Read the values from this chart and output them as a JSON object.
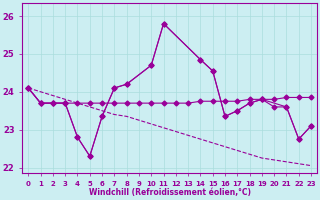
{
  "xlabel": "Windchill (Refroidissement éolien,°C)",
  "background_color": "#cceef2",
  "grid_color": "#aadddd",
  "line_color": "#990099",
  "xlim": [
    -0.5,
    23.5
  ],
  "ylim": [
    21.85,
    26.35
  ],
  "yticks": [
    22,
    23,
    24,
    25,
    26
  ],
  "xticks": [
    0,
    1,
    2,
    3,
    4,
    5,
    6,
    7,
    8,
    9,
    10,
    11,
    12,
    13,
    14,
    15,
    16,
    17,
    18,
    19,
    20,
    21,
    22,
    23
  ],
  "line1_x": [
    0,
    1,
    2,
    3,
    4,
    5,
    6,
    7,
    8,
    10,
    11,
    14,
    15,
    16,
    17,
    18,
    19,
    21,
    22,
    23
  ],
  "line1_y": [
    24.1,
    23.7,
    23.7,
    23.7,
    22.8,
    22.3,
    23.35,
    24.1,
    24.2,
    24.7,
    25.8,
    24.85,
    24.55,
    23.35,
    23.5,
    23.7,
    23.8,
    23.6,
    22.75,
    23.1
  ],
  "line2_x": [
    0,
    1,
    2,
    3,
    4,
    5,
    6,
    7,
    8,
    9,
    10,
    11,
    12,
    13,
    14,
    15,
    16,
    17,
    18,
    19,
    20,
    21,
    22,
    23
  ],
  "line2_y": [
    24.1,
    23.7,
    23.7,
    23.7,
    23.7,
    23.7,
    23.7,
    23.7,
    23.7,
    23.7,
    23.7,
    23.7,
    23.7,
    23.7,
    23.75,
    23.75,
    23.75,
    23.75,
    23.8,
    23.8,
    23.8,
    23.85,
    23.85,
    23.85
  ],
  "line3_x": [
    0,
    1,
    2,
    3,
    4,
    5,
    6,
    7,
    8,
    9,
    10,
    11,
    12,
    13,
    14,
    15,
    16,
    17,
    18,
    19,
    20,
    21,
    22,
    23
  ],
  "line3_y": [
    24.1,
    24.0,
    23.9,
    23.8,
    23.7,
    23.6,
    23.5,
    23.4,
    23.35,
    23.25,
    23.15,
    23.05,
    22.95,
    22.85,
    22.75,
    22.65,
    22.55,
    22.45,
    22.35,
    22.25,
    22.2,
    22.15,
    22.1,
    22.05
  ],
  "line4_x": [
    0,
    1,
    2,
    3,
    4,
    5,
    6,
    7,
    8,
    10,
    11,
    14,
    15,
    16,
    17,
    18,
    19,
    20,
    21,
    22,
    23
  ],
  "line4_y": [
    24.1,
    23.7,
    23.7,
    23.7,
    22.8,
    22.3,
    23.35,
    24.1,
    24.2,
    24.7,
    25.8,
    24.85,
    24.55,
    23.35,
    23.5,
    23.7,
    23.8,
    23.6,
    23.6,
    22.75,
    23.1
  ]
}
